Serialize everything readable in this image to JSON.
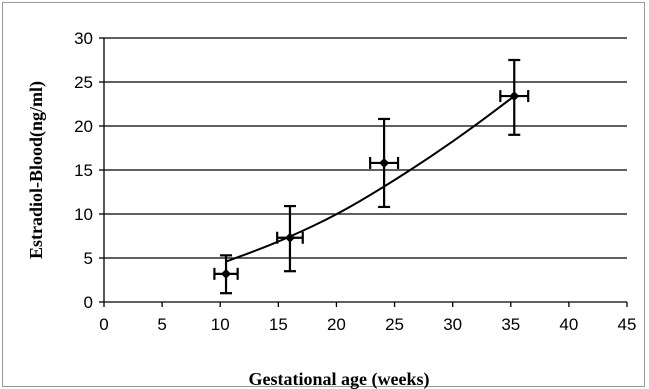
{
  "chart_data": {
    "type": "scatter",
    "title": "",
    "xlabel": "Gestational age (weeks)",
    "ylabel": "Estradiol-Blood(ng/ml)",
    "xlim": [
      0,
      45
    ],
    "ylim": [
      0,
      30
    ],
    "x_ticks": [
      0,
      5,
      10,
      15,
      20,
      25,
      30,
      35,
      40,
      45
    ],
    "y_ticks": [
      0,
      5,
      10,
      15,
      20,
      25,
      30
    ],
    "x_tick_labels": [
      "0",
      "5",
      "10",
      "15",
      "20",
      "25",
      "30",
      "35",
      "40",
      "45"
    ],
    "y_tick_labels": [
      "0",
      "5",
      "10",
      "15",
      "20",
      "25",
      "30"
    ],
    "grid": "horizontal",
    "legend": "none",
    "colors": {
      "marker": "#000000",
      "gridline": "#000000",
      "frame": "#9a9a9a"
    },
    "series": [
      {
        "points": [
          {
            "x": 10.5,
            "y": 3.2,
            "x_err": 1.0,
            "y_err_low": 2.2,
            "y_err_high": 2.1
          },
          {
            "x": 16.0,
            "y": 7.3,
            "x_err": 1.1,
            "y_err_low": 3.8,
            "y_err_high": 3.6
          },
          {
            "x": 24.1,
            "y": 15.8,
            "x_err": 1.2,
            "y_err_low": 5.0,
            "y_err_high": 5.0
          },
          {
            "x": 35.3,
            "y": 23.4,
            "x_err": 1.2,
            "y_err_low": 4.4,
            "y_err_high": 4.1
          }
        ],
        "trendline": {
          "type": "polynomial",
          "points": [
            {
              "x": 10.5,
              "y": 4.6
            },
            {
              "x": 13.0,
              "y": 5.8
            },
            {
              "x": 16.0,
              "y": 7.4
            },
            {
              "x": 20.0,
              "y": 9.9
            },
            {
              "x": 24.0,
              "y": 13.0
            },
            {
              "x": 28.0,
              "y": 16.4
            },
            {
              "x": 32.0,
              "y": 20.1
            },
            {
              "x": 35.3,
              "y": 23.4
            }
          ]
        }
      }
    ]
  }
}
